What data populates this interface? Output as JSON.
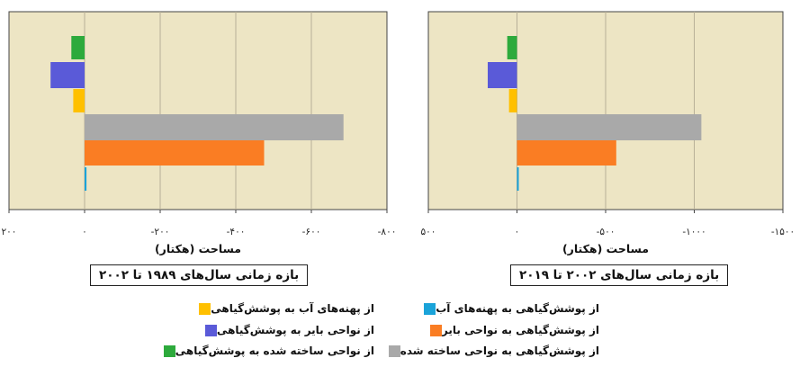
{
  "colors": {
    "water_to_veg": "#FFC000",
    "bare_to_veg": "#5A5AD8",
    "built_to_veg": "#2DAA3C",
    "built": "#A9A9A9",
    "bare": "#FA7D23",
    "water": "#1AA3D9",
    "plot_bg": "#EDE5C4"
  },
  "chart_data": [
    {
      "type": "bar",
      "orientation": "horizontal",
      "title": "بازه زمانی سال‌های ۱۹۸۹ تا ۲۰۰۲",
      "xlabel": "مساحت (هکتار)",
      "xlim": [
        200,
        -800
      ],
      "xticks": [
        200,
        0,
        -200,
        -400,
        -600,
        -800
      ],
      "xtick_labels": [
        "۲۰۰",
        "۰",
        "-۲۰۰",
        "-۴۰۰",
        "-۶۰۰",
        "-۸۰۰"
      ],
      "grid": true,
      "series": [
        {
          "name": "از نواحی ساخته شده به پوشش‌گیاهی",
          "color_key": "built_to_veg",
          "value": 35
        },
        {
          "name": "از نواحی بایر به پوشش‌گیاهی",
          "color_key": "bare_to_veg",
          "value": 90
        },
        {
          "name": "از پهنه‌های آب به پوشش‌گیاهی",
          "color_key": "water_to_veg",
          "value": 30
        },
        {
          "name": "از پوشش‌گیاهی به نواحی ساخته شده",
          "color_key": "built",
          "value": -685
        },
        {
          "name": "از پوشش‌گیاهی به نواحی بایر",
          "color_key": "bare",
          "value": -475
        },
        {
          "name": "از پوشش‌گیاهی به پهنه‌های آب",
          "color_key": "water",
          "value": -5
        }
      ]
    },
    {
      "type": "bar",
      "orientation": "horizontal",
      "title": "بازه زمانی سال‌های ۲۰۰۲ تا ۲۰۱۹",
      "xlabel": "مساحت (هکتار)",
      "xlim": [
        500,
        -1500
      ],
      "xticks": [
        500,
        0,
        -500,
        -1000,
        -1500
      ],
      "xtick_labels": [
        "۵۰۰",
        "۰",
        "-۵۰۰",
        "-۱۰۰۰",
        "-۱۵۰۰"
      ],
      "grid": true,
      "series": [
        {
          "name": "از نواحی ساخته شده به پوشش‌گیاهی",
          "color_key": "built_to_veg",
          "value": 55
        },
        {
          "name": "از نواحی بایر به پوشش‌گیاهی",
          "color_key": "bare_to_veg",
          "value": 165
        },
        {
          "name": "از پهنه‌های آب به پوشش‌گیاهی",
          "color_key": "water_to_veg",
          "value": 45
        },
        {
          "name": "از پوشش‌گیاهی به نواحی ساخته شده",
          "color_key": "built",
          "value": -1040
        },
        {
          "name": "از پوشش‌گیاهی به نواحی بایر",
          "color_key": "bare",
          "value": -560
        },
        {
          "name": "از پوشش‌گیاهی به پهنه‌های آب",
          "color_key": "water",
          "value": -10
        }
      ]
    }
  ],
  "legend": [
    {
      "label": "از پهنه‌های آب به پوشش‌گیاهی",
      "color_key": "water_to_veg"
    },
    {
      "label": "از پوشش‌گیاهی به پهنه‌های آب",
      "color_key": "water"
    },
    {
      "label": "از نواحی بایر به پوشش‌گیاهی",
      "color_key": "bare_to_veg"
    },
    {
      "label": "از پوشش‌گیاهی به نواحی بایر",
      "color_key": "bare"
    },
    {
      "label": "از نواحی ساخته شده به پوشش‌گیاهی",
      "color_key": "built_to_veg"
    },
    {
      "label": "از پوشش‌گیاهی به نواحی ساخته شده",
      "color_key": "built"
    }
  ]
}
